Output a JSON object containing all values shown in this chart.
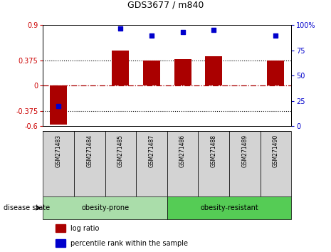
{
  "title": "GDS3677 / m840",
  "samples": [
    "GSM271483",
    "GSM271484",
    "GSM271485",
    "GSM271487",
    "GSM271486",
    "GSM271488",
    "GSM271489",
    "GSM271490"
  ],
  "log_ratio": [
    -0.58,
    0.0,
    0.52,
    0.375,
    0.4,
    0.44,
    0.0,
    0.375
  ],
  "percentile": [
    20,
    null,
    97,
    90,
    93,
    95,
    null,
    90
  ],
  "groups": [
    {
      "label": "obesity-prone",
      "start": 0,
      "end": 4,
      "color": "#aaddaa"
    },
    {
      "label": "obesity-resistant",
      "start": 4,
      "end": 8,
      "color": "#55cc55"
    }
  ],
  "bar_color": "#aa0000",
  "dot_color": "#0000cc",
  "ylim_left": [
    -0.6,
    0.9
  ],
  "ylim_right": [
    0,
    100
  ],
  "left_yticks": [
    -0.6,
    -0.375,
    0,
    0.375,
    0.9
  ],
  "right_yticks": [
    0,
    25,
    50,
    75,
    100
  ],
  "hline_y": [
    0.375,
    -0.375
  ],
  "zero_line_y": 0.0,
  "left_tick_color": "#cc0000",
  "right_tick_color": "#0000cc",
  "legend_log_ratio": "log ratio",
  "legend_percentile": "percentile rank within the sample",
  "disease_state_label": "disease state",
  "bar_width": 0.55
}
